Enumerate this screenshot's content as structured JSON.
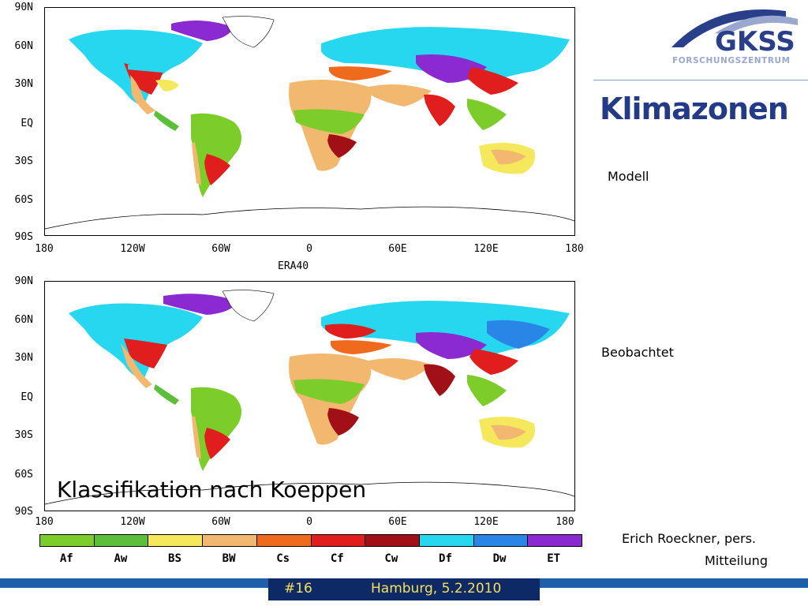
{
  "slide": {
    "title": "Klimazonen",
    "model_label": "Modell",
    "observed_label": "Beobachtet",
    "classification_title": "Klassifikation nach Koeppen",
    "credit_line1": "Erich Roeckner, pers.",
    "credit_line2": "Mitteilung",
    "slide_number": "#16",
    "place_date": "Hamburg, 5.2.2010"
  },
  "logo": {
    "name": "GKSS",
    "subtitle": "FORSCHUNGSZENTRUM",
    "colors": {
      "dark": "#2a3f8a",
      "light": "#9aa8cf"
    }
  },
  "maps": {
    "top_caption": "ERA40",
    "y_ticks": [
      "90N",
      "60N",
      "30N",
      "EQ",
      "30S",
      "60S",
      "90S"
    ],
    "x_ticks": [
      "180",
      "120W",
      "60W",
      "0",
      "60E",
      "120E",
      "180"
    ]
  },
  "legend": {
    "classes": [
      {
        "code": "Af",
        "color": "#7ccc2a"
      },
      {
        "code": "Aw",
        "color": "#5cbf3a"
      },
      {
        "code": "BS",
        "color": "#f6e85c"
      },
      {
        "code": "BW",
        "color": "#f2b870"
      },
      {
        "code": "Cs",
        "color": "#f06a1e"
      },
      {
        "code": "Cf",
        "color": "#e01e1e"
      },
      {
        "code": "Cw",
        "color": "#a01016"
      },
      {
        "code": "Df",
        "color": "#27d7f0"
      },
      {
        "code": "Dw",
        "color": "#2a86e6"
      },
      {
        "code": "ET",
        "color": "#8a2ad0"
      }
    ]
  }
}
